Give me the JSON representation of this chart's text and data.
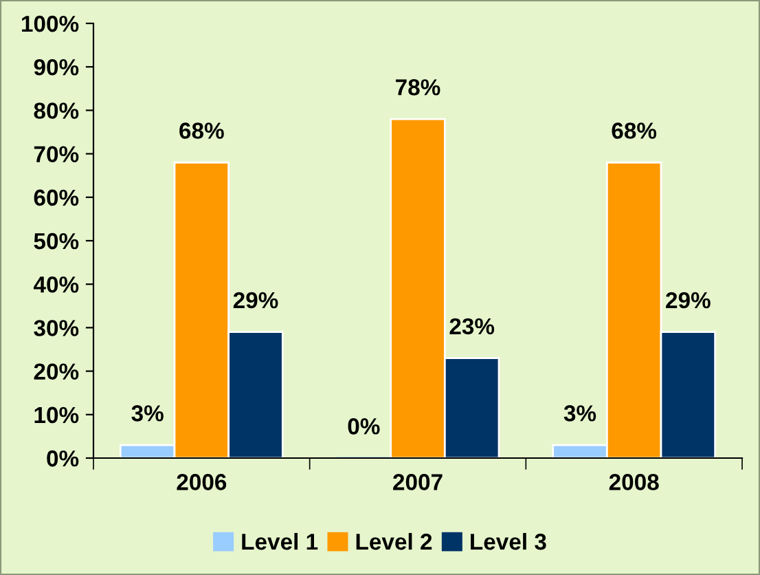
{
  "chart_data": {
    "type": "bar",
    "categories": [
      "2006",
      "2007",
      "2008"
    ],
    "series": [
      {
        "name": "Level 1",
        "color": "#99ccff",
        "values": [
          3,
          0,
          3
        ],
        "value_labels": [
          "3%",
          "0%",
          "3%"
        ]
      },
      {
        "name": "Level 2",
        "color": "#ff9900",
        "values": [
          68,
          78,
          68
        ],
        "value_labels": [
          "68%",
          "78%",
          "68%"
        ]
      },
      {
        "name": "Level 3",
        "color": "#003366",
        "values": [
          29,
          23,
          29
        ],
        "value_labels": [
          "29%",
          "23%",
          "29%"
        ]
      }
    ],
    "ylim": [
      0,
      100
    ],
    "yticks": [
      {
        "value": 0,
        "label": "0%"
      },
      {
        "value": 10,
        "label": "10%"
      },
      {
        "value": 20,
        "label": "20%"
      },
      {
        "value": 30,
        "label": "30%"
      },
      {
        "value": 40,
        "label": "40%"
      },
      {
        "value": 50,
        "label": "50%"
      },
      {
        "value": 60,
        "label": "60%"
      },
      {
        "value": 70,
        "label": "70%"
      },
      {
        "value": 80,
        "label": "80%"
      },
      {
        "value": 90,
        "label": "90%"
      },
      {
        "value": 100,
        "label": "100%"
      }
    ],
    "grid": false,
    "legend": "bottom"
  }
}
